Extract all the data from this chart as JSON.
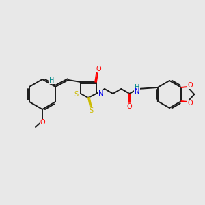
{
  "bg_color": "#e8e8e8",
  "bond_color": "#1a1a1a",
  "bond_width": 1.4,
  "atom_colors": {
    "O": "#ff0000",
    "N": "#0000ee",
    "S": "#ccbb00",
    "H_teal": "#008888",
    "C": "#1a1a1a"
  },
  "figsize": [
    3.0,
    3.0
  ],
  "dpi": 100
}
